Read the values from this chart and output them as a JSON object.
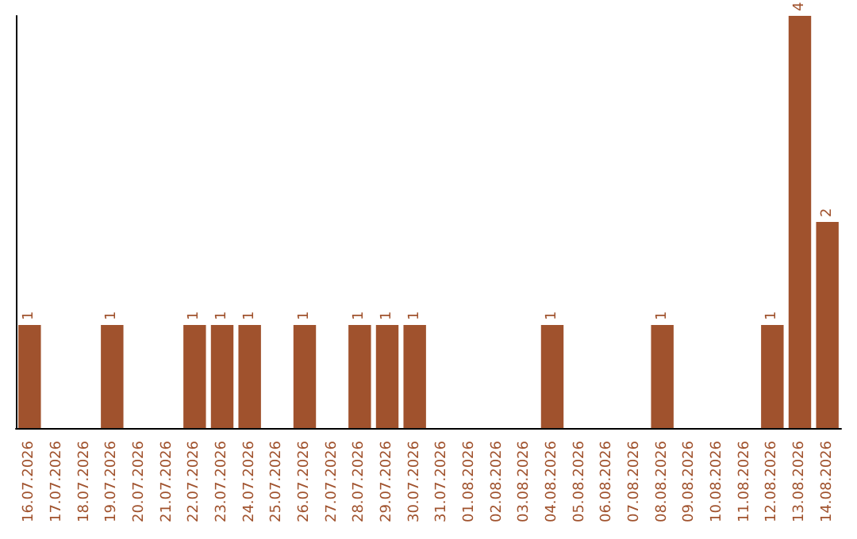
{
  "chart_data": {
    "type": "bar",
    "categories": [
      "16.07.2026",
      "17.07.2026",
      "18.07.2026",
      "19.07.2026",
      "20.07.2026",
      "21.07.2026",
      "22.07.2026",
      "23.07.2026",
      "24.07.2026",
      "25.07.2026",
      "26.07.2026",
      "27.07.2026",
      "28.07.2026",
      "29.07.2026",
      "30.07.2026",
      "31.07.2026",
      "01.08.2026",
      "02.08.2026",
      "03.08.2026",
      "04.08.2026",
      "05.08.2026",
      "06.08.2026",
      "07.08.2026",
      "08.08.2026",
      "09.08.2026",
      "10.08.2026",
      "11.08.2026",
      "12.08.2026",
      "13.08.2026",
      "14.08.2026"
    ],
    "values": [
      1,
      0,
      0,
      1,
      0,
      0,
      1,
      1,
      1,
      0,
      1,
      0,
      1,
      1,
      1,
      0,
      0,
      0,
      0,
      1,
      0,
      0,
      0,
      1,
      0,
      0,
      0,
      1,
      4,
      2
    ],
    "value_labels": [
      "1",
      null,
      null,
      "1",
      null,
      null,
      "1",
      "1",
      "1",
      null,
      "1",
      null,
      "1",
      "1",
      "1",
      null,
      null,
      null,
      null,
      "1",
      null,
      null,
      null,
      "1",
      null,
      null,
      null,
      "1",
      "4",
      "2"
    ],
    "color": "#a0522d",
    "tick_labels": "x",
    "grid": false
  }
}
